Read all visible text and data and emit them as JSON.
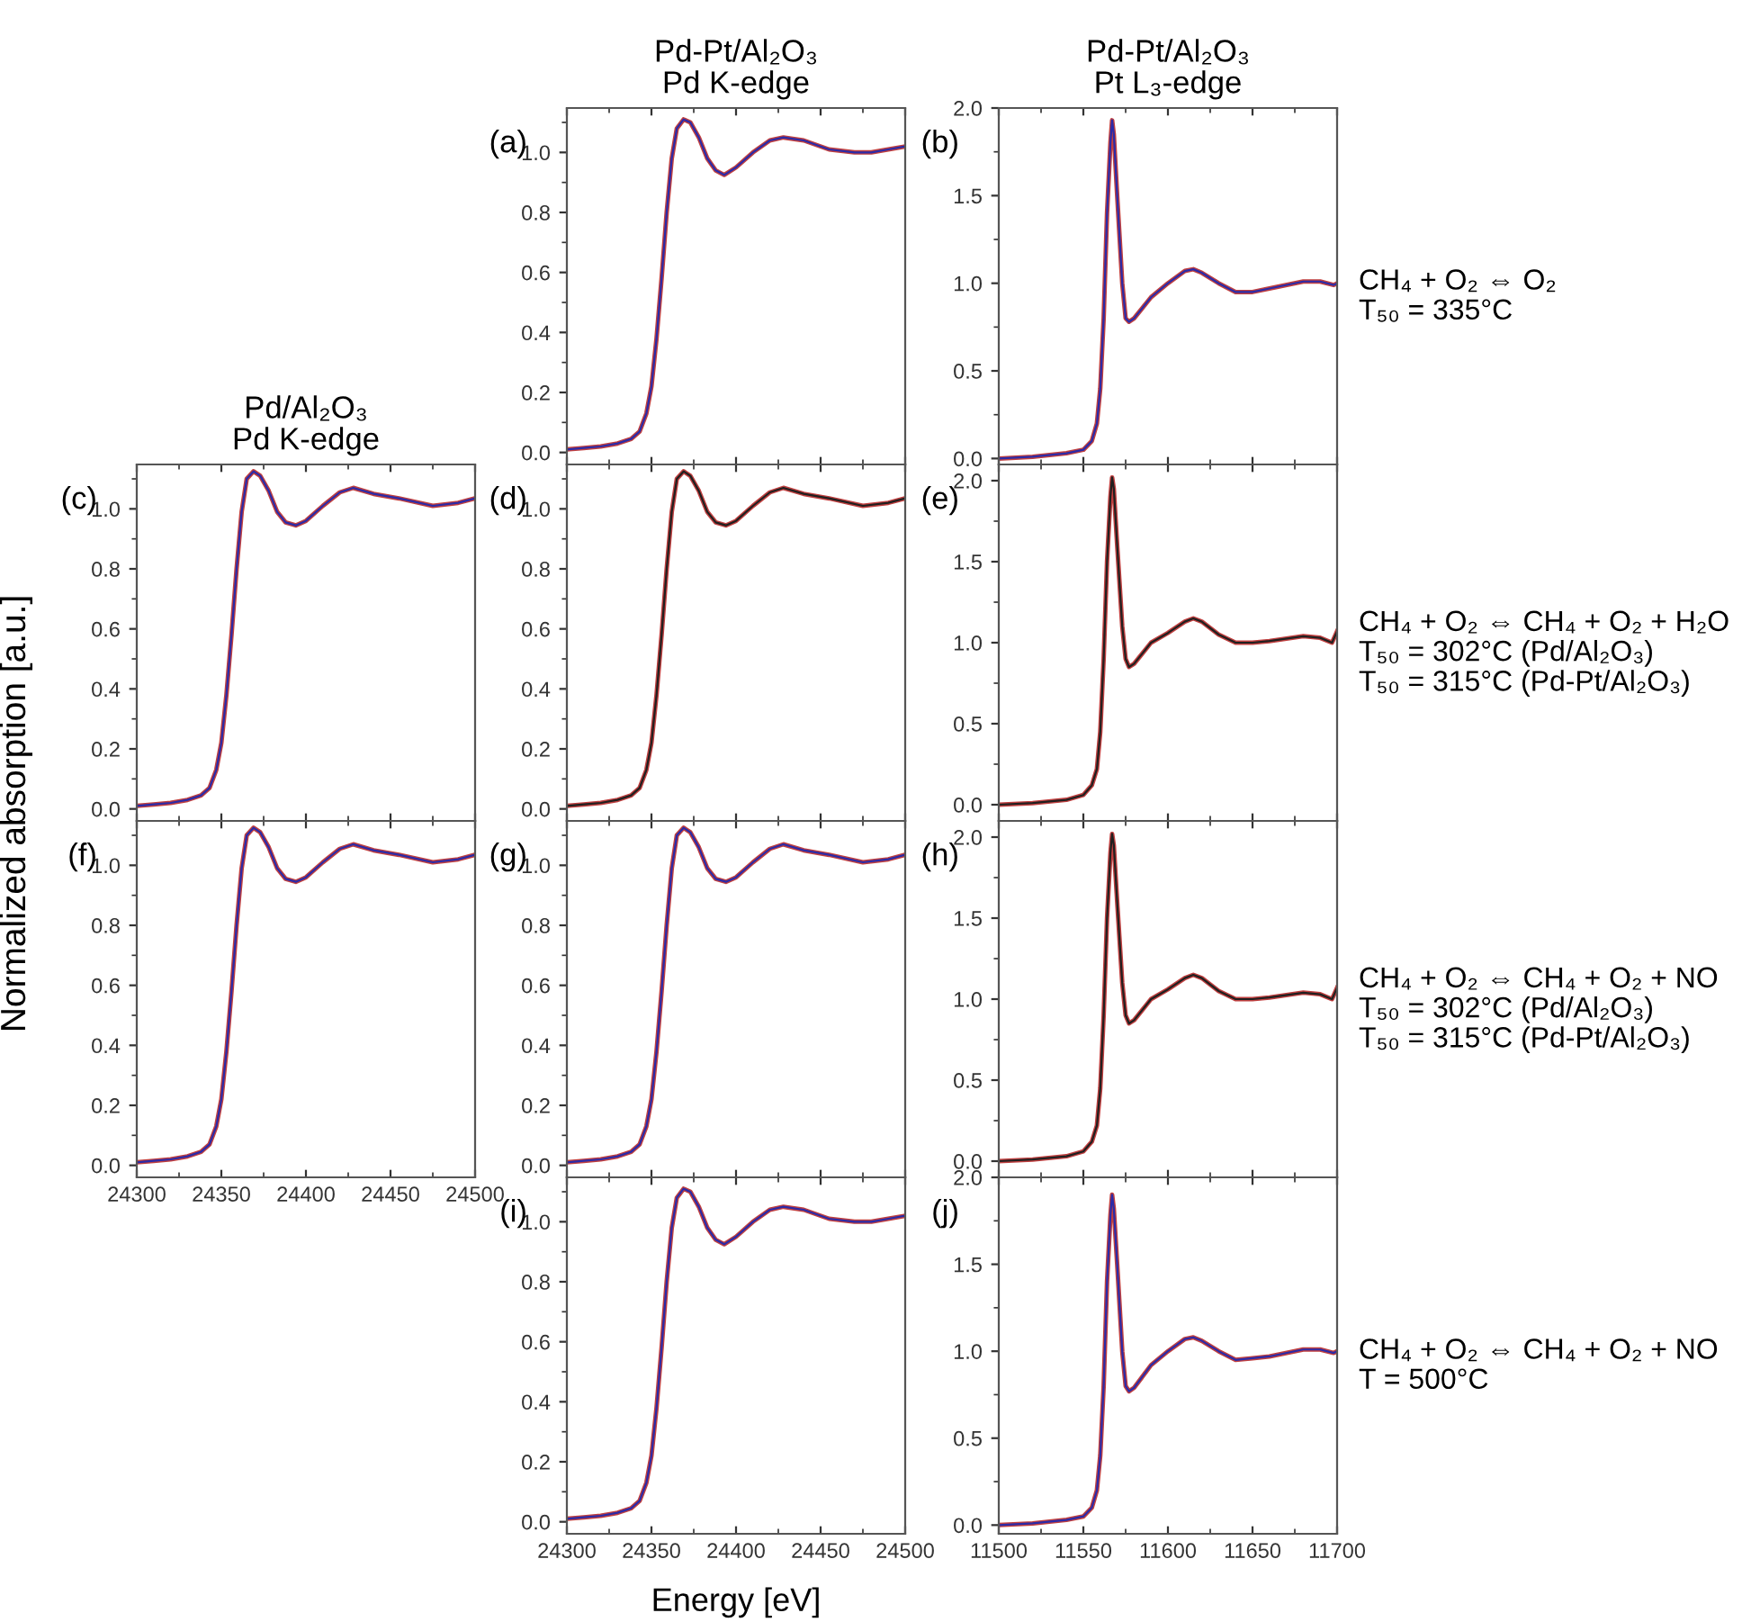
{
  "chart_data": [
    {
      "type": "line",
      "title": "Pd-Pt/Al₂O₃\nPd K-edge",
      "annotations": [
        "(a)"
      ],
      "tick_labels": "y",
      "xlim": [
        24300,
        24500
      ],
      "ylim": [
        -0.04,
        1.148
      ],
      "yticks": [
        {
          "value": 0,
          "label": "0.0"
        },
        {
          "value": 0.2,
          "label": "0.2"
        },
        {
          "value": 0.4,
          "label": "0.4"
        },
        {
          "value": 0.6,
          "label": "0.6"
        },
        {
          "value": 0.8,
          "label": "0.8"
        },
        {
          "value": 1,
          "label": "1.0"
        }
      ],
      "x": [
        24300,
        24310,
        24320,
        24330,
        24338,
        24343,
        24347,
        24350,
        24353,
        24356,
        24359,
        24362,
        24365,
        24369,
        24373,
        24378,
        24383,
        24388,
        24393,
        24400,
        24410,
        24420,
        24428,
        24440,
        24455,
        24470,
        24480,
        24490,
        24500
      ],
      "series": [
        {
          "color": "#c04040",
          "values": [
            0.01,
            0.015,
            0.02,
            0.03,
            0.045,
            0.07,
            0.13,
            0.22,
            0.38,
            0.58,
            0.8,
            0.98,
            1.08,
            1.11,
            1.1,
            1.05,
            0.98,
            0.94,
            0.925,
            0.95,
            1.0,
            1.04,
            1.05,
            1.04,
            1.01,
            1.0,
            1.0,
            1.01,
            1.02
          ]
        },
        {
          "color": "#2b2ba8",
          "values": [
            0.01,
            0.015,
            0.02,
            0.03,
            0.045,
            0.07,
            0.13,
            0.22,
            0.38,
            0.58,
            0.8,
            0.98,
            1.08,
            1.11,
            1.1,
            1.05,
            0.98,
            0.94,
            0.925,
            0.95,
            1.0,
            1.04,
            1.05,
            1.04,
            1.01,
            1.0,
            1.0,
            1.01,
            1.02
          ]
        }
      ]
    },
    {
      "type": "line",
      "title": "Pd-Pt/Al₂O₃\nPt L₃-edge",
      "annotations": [
        "(b)",
        "CH₄ + O₂ ⇔ O₂\nT₅₀ = 335°C"
      ],
      "tick_labels": "y",
      "xlim": [
        11500,
        11700
      ],
      "ylim": [
        -0.034,
        2.0
      ],
      "yticks": [
        {
          "value": 0,
          "label": "0.0"
        },
        {
          "value": 0.5,
          "label": "0.5"
        },
        {
          "value": 1,
          "label": "1.0"
        },
        {
          "value": 1.5,
          "label": "1.5"
        },
        {
          "value": 2,
          "label": "2.0"
        }
      ],
      "x": [
        11500,
        11520,
        11540,
        11550,
        11555,
        11558,
        11560,
        11562,
        11564,
        11566,
        11567,
        11568,
        11570,
        11573,
        11575,
        11577,
        11580,
        11590,
        11600,
        11610,
        11615,
        11620,
        11630,
        11640,
        11650,
        11660,
        11680,
        11690,
        11698,
        11700
      ],
      "series": [
        {
          "color": "#c04040",
          "values": [
            0.0,
            0.01,
            0.03,
            0.05,
            0.1,
            0.2,
            0.4,
            0.8,
            1.4,
            1.8,
            1.93,
            1.85,
            1.5,
            1.0,
            0.8,
            0.78,
            0.8,
            0.92,
            1.0,
            1.07,
            1.08,
            1.06,
            1.0,
            0.95,
            0.95,
            0.97,
            1.01,
            1.01,
            0.99,
            1.0
          ]
        },
        {
          "color": "#2b2ba8",
          "values": [
            0.0,
            0.01,
            0.03,
            0.05,
            0.1,
            0.2,
            0.4,
            0.8,
            1.4,
            1.8,
            1.93,
            1.85,
            1.5,
            1.0,
            0.8,
            0.78,
            0.8,
            0.92,
            1.0,
            1.07,
            1.08,
            1.06,
            1.0,
            0.95,
            0.95,
            0.97,
            1.01,
            1.01,
            0.99,
            1.0
          ]
        }
      ]
    },
    {
      "type": "line",
      "title": "Pd/Al₂O₃\nPd K-edge",
      "annotations": [
        "(c)"
      ],
      "tick_labels": "y",
      "xlim": [
        24300,
        24500
      ],
      "ylim": [
        -0.04,
        1.148
      ],
      "yticks": [
        {
          "value": 0,
          "label": "0.0"
        },
        {
          "value": 0.2,
          "label": "0.2"
        },
        {
          "value": 0.4,
          "label": "0.4"
        },
        {
          "value": 0.6,
          "label": "0.6"
        },
        {
          "value": 0.8,
          "label": "0.8"
        },
        {
          "value": 1,
          "label": "1.0"
        }
      ],
      "x": [
        24300,
        24310,
        24320,
        24330,
        24338,
        24343,
        24347,
        24350,
        24353,
        24356,
        24359,
        24362,
        24365,
        24369,
        24373,
        24378,
        24383,
        24388,
        24394,
        24400,
        24410,
        24420,
        24428,
        24440,
        24455,
        24475,
        24490,
        24500
      ],
      "series": [
        {
          "color": "#c04040",
          "values": [
            0.01,
            0.015,
            0.02,
            0.03,
            0.045,
            0.07,
            0.13,
            0.22,
            0.38,
            0.58,
            0.8,
            0.99,
            1.1,
            1.125,
            1.11,
            1.06,
            0.99,
            0.955,
            0.945,
            0.96,
            1.01,
            1.055,
            1.07,
            1.05,
            1.035,
            1.01,
            1.02,
            1.035
          ]
        },
        {
          "color": "#2b2ba8",
          "values": [
            0.01,
            0.015,
            0.02,
            0.03,
            0.045,
            0.07,
            0.13,
            0.22,
            0.38,
            0.58,
            0.8,
            0.99,
            1.1,
            1.125,
            1.11,
            1.06,
            0.99,
            0.955,
            0.945,
            0.96,
            1.01,
            1.055,
            1.07,
            1.05,
            1.035,
            1.01,
            1.02,
            1.035
          ]
        }
      ]
    },
    {
      "type": "line",
      "annotations": [
        "(d)"
      ],
      "tick_labels": "y",
      "xlim": [
        24300,
        24500
      ],
      "ylim": [
        -0.04,
        1.148
      ],
      "yticks": [
        {
          "value": 0,
          "label": "0.0"
        },
        {
          "value": 0.2,
          "label": "0.2"
        },
        {
          "value": 0.4,
          "label": "0.4"
        },
        {
          "value": 0.6,
          "label": "0.6"
        },
        {
          "value": 0.8,
          "label": "0.8"
        },
        {
          "value": 1,
          "label": "1.0"
        }
      ],
      "x": [
        24300,
        24310,
        24320,
        24330,
        24338,
        24343,
        24347,
        24350,
        24353,
        24356,
        24359,
        24362,
        24365,
        24369,
        24373,
        24378,
        24383,
        24388,
        24394,
        24400,
        24410,
        24420,
        24428,
        24440,
        24455,
        24475,
        24490,
        24500
      ],
      "series": [
        {
          "color": "#c04040",
          "values": [
            0.01,
            0.015,
            0.02,
            0.03,
            0.045,
            0.07,
            0.13,
            0.22,
            0.38,
            0.58,
            0.8,
            0.99,
            1.1,
            1.125,
            1.11,
            1.06,
            0.99,
            0.955,
            0.945,
            0.96,
            1.01,
            1.055,
            1.07,
            1.05,
            1.035,
            1.01,
            1.02,
            1.035
          ]
        },
        {
          "color": "#202020",
          "values": [
            0.01,
            0.015,
            0.02,
            0.03,
            0.045,
            0.07,
            0.13,
            0.22,
            0.38,
            0.58,
            0.8,
            0.99,
            1.1,
            1.125,
            1.11,
            1.06,
            0.99,
            0.955,
            0.945,
            0.96,
            1.01,
            1.055,
            1.07,
            1.05,
            1.035,
            1.01,
            1.02,
            1.035
          ]
        }
      ]
    },
    {
      "type": "line",
      "annotations": [
        "(e)",
        "CH₄ + O₂ ⇔ CH₄ + O₂ + H₂O\nT₅₀ = 302°C (Pd/Al₂O₃)\nT₅₀ = 315°C (Pd-Pt/Al₂O₃)"
      ],
      "tick_labels": "y",
      "xlim": [
        11500,
        11700
      ],
      "ylim": [
        -0.1,
        2.1
      ],
      "yticks": [
        {
          "value": 0,
          "label": "0.0"
        },
        {
          "value": 0.5,
          "label": "0.5"
        },
        {
          "value": 1,
          "label": "1.0"
        },
        {
          "value": 1.5,
          "label": "1.5"
        },
        {
          "value": 2,
          "label": "2.0"
        }
      ],
      "x": [
        11500,
        11520,
        11540,
        11550,
        11555,
        11558,
        11560,
        11562,
        11564,
        11566,
        11567,
        11568,
        11570,
        11573,
        11575,
        11577,
        11580,
        11590,
        11600,
        11610,
        11615,
        11620,
        11630,
        11640,
        11650,
        11660,
        11680,
        11690,
        11697,
        11700
      ],
      "series": [
        {
          "color": "#c04040",
          "values": [
            0.0,
            0.01,
            0.03,
            0.06,
            0.12,
            0.22,
            0.45,
            0.9,
            1.5,
            1.9,
            2.02,
            1.95,
            1.6,
            1.1,
            0.9,
            0.85,
            0.87,
            1.0,
            1.06,
            1.13,
            1.15,
            1.13,
            1.05,
            1.0,
            1.0,
            1.01,
            1.04,
            1.03,
            1.0,
            1.07
          ]
        },
        {
          "color": "#202020",
          "values": [
            0.0,
            0.01,
            0.03,
            0.06,
            0.12,
            0.22,
            0.45,
            0.9,
            1.5,
            1.9,
            2.02,
            1.95,
            1.6,
            1.1,
            0.9,
            0.85,
            0.87,
            1.0,
            1.06,
            1.13,
            1.15,
            1.13,
            1.05,
            1.0,
            1.0,
            1.01,
            1.04,
            1.03,
            1.0,
            1.07
          ]
        }
      ]
    },
    {
      "type": "line",
      "annotations": [
        "(f)"
      ],
      "xlim": [
        24300,
        24500
      ],
      "xticks": [
        24300,
        24350,
        24400,
        24450,
        24500
      ],
      "ylim": [
        -0.04,
        1.148
      ],
      "yticks": [
        {
          "value": 0,
          "label": "0.0"
        },
        {
          "value": 0.2,
          "label": "0.2"
        },
        {
          "value": 0.4,
          "label": "0.4"
        },
        {
          "value": 0.6,
          "label": "0.6"
        },
        {
          "value": 0.8,
          "label": "0.8"
        },
        {
          "value": 1,
          "label": "1.0"
        }
      ],
      "x": [
        24300,
        24310,
        24320,
        24330,
        24338,
        24343,
        24347,
        24350,
        24353,
        24356,
        24359,
        24362,
        24365,
        24369,
        24373,
        24378,
        24383,
        24388,
        24394,
        24400,
        24410,
        24420,
        24428,
        24440,
        24455,
        24475,
        24490,
        24500
      ],
      "series": [
        {
          "color": "#c04040",
          "values": [
            0.01,
            0.015,
            0.02,
            0.03,
            0.045,
            0.07,
            0.13,
            0.22,
            0.38,
            0.58,
            0.8,
            0.99,
            1.1,
            1.125,
            1.11,
            1.06,
            0.99,
            0.955,
            0.945,
            0.96,
            1.01,
            1.055,
            1.07,
            1.05,
            1.035,
            1.01,
            1.02,
            1.035
          ]
        },
        {
          "color": "#2b2ba8",
          "values": [
            0.01,
            0.015,
            0.02,
            0.03,
            0.045,
            0.07,
            0.13,
            0.22,
            0.38,
            0.58,
            0.8,
            0.99,
            1.1,
            1.125,
            1.11,
            1.06,
            0.99,
            0.955,
            0.945,
            0.96,
            1.01,
            1.055,
            1.07,
            1.05,
            1.035,
            1.01,
            1.02,
            1.035
          ]
        }
      ]
    },
    {
      "type": "line",
      "annotations": [
        "(g)"
      ],
      "tick_labels": "y",
      "xlim": [
        24300,
        24500
      ],
      "ylim": [
        -0.04,
        1.148
      ],
      "yticks": [
        {
          "value": 0,
          "label": "0.0"
        },
        {
          "value": 0.2,
          "label": "0.2"
        },
        {
          "value": 0.4,
          "label": "0.4"
        },
        {
          "value": 0.6,
          "label": "0.6"
        },
        {
          "value": 0.8,
          "label": "0.8"
        },
        {
          "value": 1,
          "label": "1.0"
        }
      ],
      "x": [
        24300,
        24310,
        24320,
        24330,
        24338,
        24343,
        24347,
        24350,
        24353,
        24356,
        24359,
        24362,
        24365,
        24369,
        24373,
        24378,
        24383,
        24388,
        24394,
        24400,
        24410,
        24420,
        24428,
        24440,
        24455,
        24475,
        24490,
        24500
      ],
      "series": [
        {
          "color": "#c04040",
          "values": [
            0.01,
            0.015,
            0.02,
            0.03,
            0.045,
            0.07,
            0.13,
            0.22,
            0.38,
            0.58,
            0.8,
            0.99,
            1.1,
            1.125,
            1.11,
            1.06,
            0.99,
            0.955,
            0.945,
            0.96,
            1.01,
            1.055,
            1.07,
            1.05,
            1.035,
            1.01,
            1.02,
            1.035
          ]
        },
        {
          "color": "#2b2ba8",
          "values": [
            0.01,
            0.015,
            0.02,
            0.03,
            0.045,
            0.07,
            0.13,
            0.22,
            0.38,
            0.58,
            0.8,
            0.99,
            1.1,
            1.125,
            1.11,
            1.06,
            0.99,
            0.955,
            0.945,
            0.96,
            1.01,
            1.055,
            1.07,
            1.05,
            1.035,
            1.01,
            1.02,
            1.035
          ]
        }
      ]
    },
    {
      "type": "line",
      "annotations": [
        "(h)",
        "CH₄ + O₂ ⇔ CH₄ + O₂ + NO\nT₅₀ = 302°C (Pd/Al₂O₃)\nT₅₀ = 315°C (Pd-Pt/Al₂O₃)"
      ],
      "tick_labels": "y",
      "xlim": [
        11500,
        11700
      ],
      "ylim": [
        -0.1,
        2.1
      ],
      "yticks": [
        {
          "value": 0,
          "label": "0.0"
        },
        {
          "value": 0.5,
          "label": "0.5"
        },
        {
          "value": 1,
          "label": "1.0"
        },
        {
          "value": 1.5,
          "label": "1.5"
        },
        {
          "value": 2,
          "label": "2.0"
        }
      ],
      "x": [
        11500,
        11520,
        11540,
        11550,
        11555,
        11558,
        11560,
        11562,
        11564,
        11566,
        11567,
        11568,
        11570,
        11573,
        11575,
        11577,
        11580,
        11590,
        11600,
        11610,
        11615,
        11620,
        11630,
        11640,
        11650,
        11660,
        11680,
        11690,
        11697,
        11700
      ],
      "series": [
        {
          "color": "#c04040",
          "values": [
            0.0,
            0.01,
            0.03,
            0.06,
            0.12,
            0.22,
            0.45,
            0.9,
            1.5,
            1.9,
            2.02,
            1.95,
            1.6,
            1.1,
            0.9,
            0.85,
            0.87,
            1.0,
            1.06,
            1.13,
            1.15,
            1.13,
            1.05,
            1.0,
            1.0,
            1.01,
            1.04,
            1.03,
            1.0,
            1.07
          ]
        },
        {
          "color": "#202020",
          "values": [
            0.0,
            0.01,
            0.03,
            0.06,
            0.12,
            0.22,
            0.45,
            0.9,
            1.5,
            1.9,
            2.02,
            1.95,
            1.6,
            1.1,
            0.9,
            0.85,
            0.87,
            1.0,
            1.06,
            1.13,
            1.15,
            1.13,
            1.05,
            1.0,
            1.0,
            1.01,
            1.04,
            1.03,
            1.0,
            1.07
          ]
        }
      ]
    },
    {
      "type": "line",
      "xlabel": "Energy [eV]",
      "ylabel": "Normalized absorption [a.u.]",
      "annotations": [
        "(i)"
      ],
      "xlim": [
        24300,
        24500
      ],
      "xticks": [
        24300,
        24350,
        24400,
        24450,
        24500
      ],
      "ylim": [
        -0.04,
        1.148
      ],
      "yticks": [
        {
          "value": 0,
          "label": "0.0"
        },
        {
          "value": 0.2,
          "label": "0.2"
        },
        {
          "value": 0.4,
          "label": "0.4"
        },
        {
          "value": 0.6,
          "label": "0.6"
        },
        {
          "value": 0.8,
          "label": "0.8"
        },
        {
          "value": 1,
          "label": "1.0"
        }
      ],
      "x": [
        24300,
        24310,
        24320,
        24330,
        24338,
        24343,
        24347,
        24350,
        24353,
        24356,
        24359,
        24362,
        24365,
        24369,
        24373,
        24378,
        24383,
        24388,
        24393,
        24400,
        24410,
        24420,
        24428,
        24440,
        24455,
        24470,
        24480,
        24490,
        24500
      ],
      "series": [
        {
          "color": "#c04040",
          "values": [
            0.01,
            0.015,
            0.02,
            0.03,
            0.045,
            0.07,
            0.13,
            0.22,
            0.38,
            0.58,
            0.8,
            0.98,
            1.08,
            1.11,
            1.1,
            1.05,
            0.98,
            0.94,
            0.925,
            0.95,
            1.0,
            1.04,
            1.05,
            1.04,
            1.01,
            1.0,
            1.0,
            1.01,
            1.02
          ]
        },
        {
          "color": "#2b2ba8",
          "values": [
            0.01,
            0.015,
            0.02,
            0.03,
            0.045,
            0.07,
            0.13,
            0.22,
            0.38,
            0.58,
            0.8,
            0.98,
            1.08,
            1.11,
            1.1,
            1.05,
            0.98,
            0.94,
            0.925,
            0.95,
            1.0,
            1.04,
            1.05,
            1.04,
            1.01,
            1.0,
            1.0,
            1.01,
            1.02
          ]
        }
      ]
    },
    {
      "type": "line",
      "annotations": [
        "(j)",
        "CH₄ + O₂ ⇔ CH₄ + O₂ + NO\nT = 500°C"
      ],
      "xlim": [
        11500,
        11700
      ],
      "xticks": [
        11500,
        11550,
        11600,
        11650,
        11700
      ],
      "ylim": [
        -0.05,
        2.0
      ],
      "yticks": [
        {
          "value": 0,
          "label": "0.0"
        },
        {
          "value": 0.5,
          "label": "0.5"
        },
        {
          "value": 1,
          "label": "1.0"
        },
        {
          "value": 1.5,
          "label": "1.5"
        },
        {
          "value": 2,
          "label": "2.0"
        }
      ],
      "x": [
        11500,
        11520,
        11540,
        11550,
        11555,
        11558,
        11560,
        11562,
        11564,
        11566,
        11567,
        11568,
        11570,
        11573,
        11575,
        11577,
        11580,
        11590,
        11600,
        11610,
        11615,
        11620,
        11630,
        11640,
        11650,
        11660,
        11680,
        11690,
        11698,
        11700
      ],
      "series": [
        {
          "color": "#c04040",
          "values": [
            0.0,
            0.01,
            0.03,
            0.05,
            0.1,
            0.2,
            0.4,
            0.8,
            1.4,
            1.78,
            1.9,
            1.82,
            1.5,
            1.0,
            0.8,
            0.77,
            0.79,
            0.92,
            1.0,
            1.07,
            1.08,
            1.06,
            1.0,
            0.95,
            0.96,
            0.97,
            1.01,
            1.01,
            0.99,
            1.0
          ]
        },
        {
          "color": "#2b2ba8",
          "values": [
            0.0,
            0.01,
            0.03,
            0.05,
            0.1,
            0.2,
            0.4,
            0.8,
            1.4,
            1.78,
            1.9,
            1.82,
            1.5,
            1.0,
            0.8,
            0.77,
            0.79,
            0.92,
            1.0,
            1.07,
            1.08,
            1.06,
            1.0,
            0.95,
            0.96,
            0.97,
            1.01,
            1.01,
            0.99,
            1.0
          ]
        }
      ]
    }
  ]
}
